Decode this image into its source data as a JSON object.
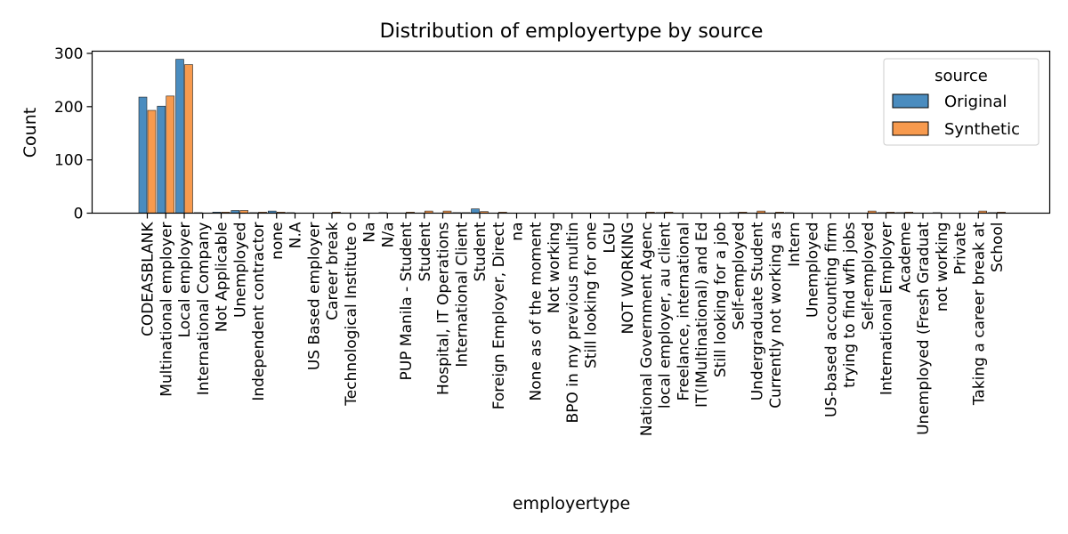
{
  "chart_data": {
    "type": "bar",
    "title": "Distribution of employertype by source",
    "xlabel": "employertype",
    "ylabel": "Count",
    "ylim": [
      0,
      300
    ],
    "yticks": [
      0,
      100,
      200,
      300
    ],
    "grid": false,
    "legend": {
      "title": "source",
      "placement": "top-right"
    },
    "categories": [
      "CODEASBLANK",
      "Multinational employer",
      "Local employer",
      "International Company",
      "Not Applicable",
      "Unemployed",
      "Independent contractor",
      "none",
      "N.A",
      "US Based employer",
      "Career break",
      "Technological Institute o",
      "Na",
      "N/a",
      "PUP Manila - Student",
      "Student",
      "Hospital, IT Operations",
      "International Client",
      "Student",
      "Foreign Employer, Direct",
      "na",
      "None as of the moment",
      "Not working",
      "BPO in my previous multin",
      "Still looking for one",
      "LGU",
      "NOT WORKING",
      "National Government Agenc",
      "local employer, au client",
      "Freelance, international",
      "IT(IMultinational) and Ed",
      "Still looking for a job",
      "Self-employed",
      "Undergraduate Student",
      "Currently not working as",
      "Intern",
      "Unemployed",
      "US-based accounting firm",
      "trying to find wfh jobs",
      "Self-employed",
      "International Employer",
      "Academe",
      "Unemployed (Fresh Graduat",
      "not working",
      "Private",
      "Taking a career break at",
      "School"
    ],
    "series": [
      {
        "name": "Original",
        "color": "#4a8cbf",
        "values": [
          218,
          201,
          289,
          1,
          2,
          5,
          1,
          4,
          1,
          0,
          0,
          0,
          0,
          1,
          0,
          0,
          0,
          1,
          8,
          0,
          0,
          0,
          0,
          0,
          0,
          0,
          0,
          0,
          1,
          0,
          0,
          0,
          1,
          0,
          0,
          1,
          0,
          0,
          0,
          0,
          1,
          1,
          0,
          1,
          0,
          0,
          1
        ]
      },
      {
        "name": "Synthetic",
        "color": "#f79a4e",
        "values": [
          193,
          220,
          279,
          0,
          2,
          5,
          2,
          2,
          0,
          0,
          2,
          0,
          0,
          0,
          2,
          4,
          4,
          1,
          3,
          2,
          0,
          0,
          0,
          0,
          0,
          0,
          0,
          2,
          2,
          0,
          0,
          0,
          2,
          4,
          2,
          0,
          0,
          0,
          0,
          4,
          2,
          2,
          0,
          0,
          0,
          4,
          2
        ]
      }
    ]
  }
}
